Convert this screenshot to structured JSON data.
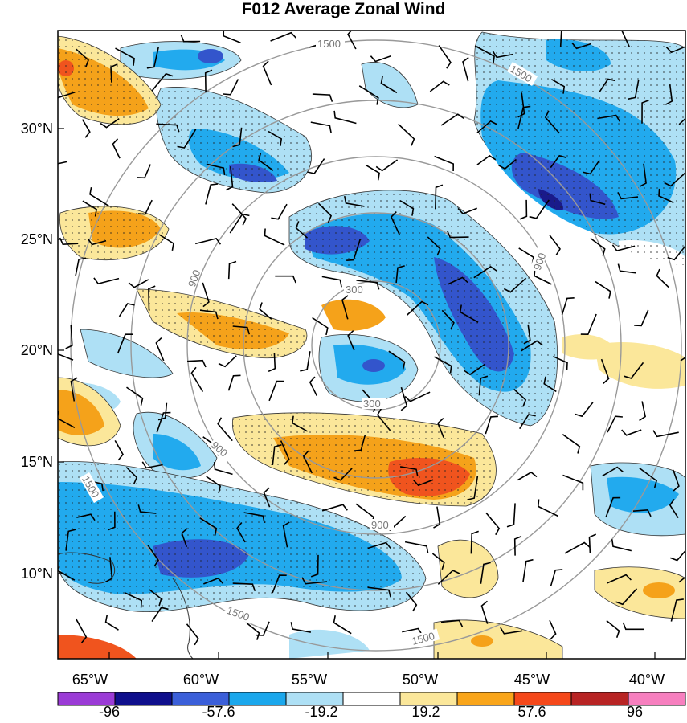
{
  "title": "F012 Average Zonal Wind",
  "map": {
    "lon_ticks": [
      "65°W",
      "60°W",
      "55°W",
      "50°W",
      "45°W",
      "40°W"
    ],
    "lat_ticks": [
      "30°N",
      "25°N",
      "20°N",
      "15°N",
      "10°N"
    ],
    "range_rings": [
      "300",
      "900",
      "1500"
    ],
    "colors": {
      "neg_strong": "#1a1a8a",
      "neg_mid": "#3355cc",
      "neg_light": "#22aaee",
      "neg_pale": "#aee0f5",
      "pos_pale": "#fbe79a",
      "pos_mid": "#f5a21a",
      "pos_strong": "#f0541e",
      "pos_dark": "#c0392b"
    }
  },
  "colorbar": {
    "labels": [
      "-96",
      "-57.6",
      "-19.2",
      "19.2",
      "57.6",
      "96"
    ],
    "colors": [
      "#9b3bd6",
      "#0f0f8c",
      "#3b5fd9",
      "#1aa7ec",
      "#aee0f5",
      "#ffffff",
      "#fbe79a",
      "#f9a51a",
      "#f5481a",
      "#b82424",
      "#f77fbf"
    ]
  }
}
